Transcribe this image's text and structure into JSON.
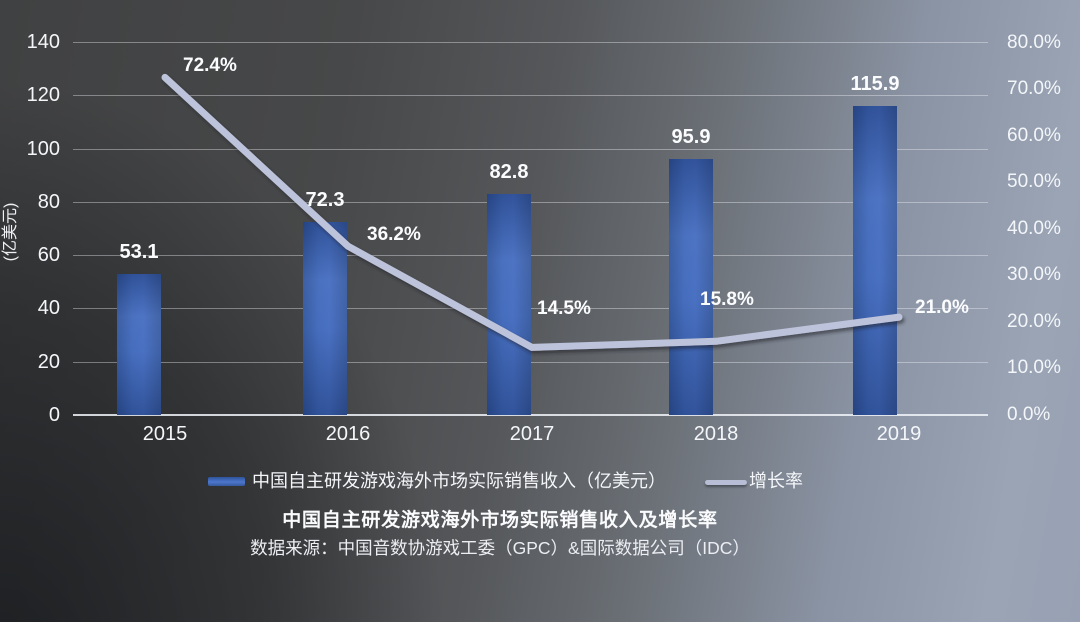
{
  "chart_data": {
    "type": "combo-bar-line",
    "title": "中国自主研发游戏海外市场实际销售收入及增长率",
    "source": "数据来源：中国音数协游戏工委（GPC）&国际数据公司（IDC）",
    "categories": [
      "2015",
      "2016",
      "2017",
      "2018",
      "2019"
    ],
    "series": [
      {
        "name": "中国自主研发游戏海外市场实际销售收入（亿美元）",
        "type": "bar",
        "axis": "left",
        "values": [
          53.1,
          72.3,
          82.8,
          95.9,
          115.9
        ],
        "labels": [
          "53.1",
          "72.3",
          "82.8",
          "95.9",
          "115.9"
        ],
        "color": "#3a63b4"
      },
      {
        "name": "增长率",
        "type": "line",
        "axis": "right",
        "values_percent": [
          72.4,
          36.2,
          14.5,
          15.8,
          21.0
        ],
        "labels": [
          "72.4%",
          "36.2%",
          "14.5%",
          "15.8%",
          "21.0%"
        ],
        "color": "#bdc3da"
      }
    ],
    "left_axis": {
      "title": "(亿美元)",
      "min": 0,
      "max": 140,
      "step": 20,
      "tick_labels": [
        "140",
        "120",
        "100",
        "80",
        "60",
        "40",
        "20",
        "0"
      ]
    },
    "right_axis": {
      "min": 0,
      "max": 80,
      "step": 10,
      "tick_labels": [
        "80.0%",
        "70.0%",
        "60.0%",
        "50.0%",
        "40.0%",
        "30.0%",
        "20.0%",
        "10.0%",
        "0.0%"
      ]
    },
    "grid": true,
    "legend_position": "bottom",
    "legend": {
      "bar_label": "中国自主研发游戏海外市场实际销售收入（亿美元）",
      "line_label": "增长率"
    }
  },
  "colors": {
    "bar": "#3a63b4",
    "line": "#bdc3da",
    "text": "#f2f4f7",
    "background_dark": "#404142",
    "background_light": "#9aa4b5"
  }
}
